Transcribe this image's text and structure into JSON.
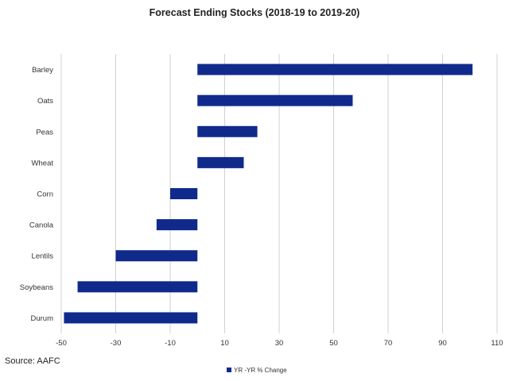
{
  "chart_data": {
    "type": "bar",
    "orientation": "horizontal",
    "title": "Forecast Ending Stocks (2018-19 to 2019-20)",
    "categories": [
      "Barley",
      "Oats",
      "Peas",
      "Wheat",
      "Corn",
      "Canola",
      "Lentils",
      "Soybeans",
      "Durum"
    ],
    "series": [
      {
        "name": "YR -YR % Change",
        "values": [
          101,
          57,
          22,
          17,
          -10,
          -15,
          -30,
          -44,
          -49
        ],
        "color": "#102a8c"
      }
    ],
    "xlim": [
      -50,
      110
    ],
    "xticks": [
      "-50",
      "-30",
      "-10",
      "10",
      "30",
      "50",
      "70",
      "90",
      "110"
    ],
    "grid": "vertical",
    "legend_position": "bottom",
    "source": "Source: AAFC"
  }
}
